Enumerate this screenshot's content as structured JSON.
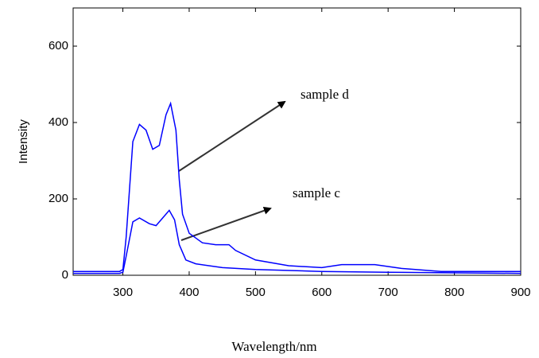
{
  "chart_data": {
    "type": "line",
    "xlabel": "Wavelength/nm",
    "ylabel": "Intensity",
    "xlim": [
      225,
      900
    ],
    "ylim": [
      0,
      700
    ],
    "xticks": [
      300,
      400,
      500,
      600,
      700,
      800,
      900
    ],
    "yticks": [
      0,
      200,
      400,
      600
    ],
    "grid": false,
    "annotations": [
      "sample d",
      "sample c"
    ],
    "series": [
      {
        "color": "#0000ff",
        "x": [
          225,
          295,
          300,
          305,
          315,
          325,
          335,
          345,
          355,
          365,
          372,
          380,
          385,
          390,
          400,
          420,
          440,
          460,
          470,
          500,
          550,
          600,
          630,
          680,
          720,
          780,
          900
        ],
        "values": [
          10,
          10,
          15,
          100,
          350,
          395,
          380,
          330,
          340,
          420,
          450,
          380,
          250,
          160,
          110,
          85,
          80,
          80,
          65,
          40,
          25,
          20,
          28,
          28,
          18,
          10,
          10
        ]
      },
      {
        "color": "#0000ff",
        "x": [
          225,
          295,
          300,
          305,
          315,
          325,
          340,
          350,
          360,
          370,
          378,
          385,
          395,
          410,
          450,
          500,
          600,
          700,
          900
        ],
        "values": [
          5,
          5,
          8,
          50,
          140,
          150,
          135,
          130,
          150,
          170,
          145,
          80,
          40,
          30,
          20,
          15,
          10,
          8,
          5
        ]
      }
    ]
  }
}
